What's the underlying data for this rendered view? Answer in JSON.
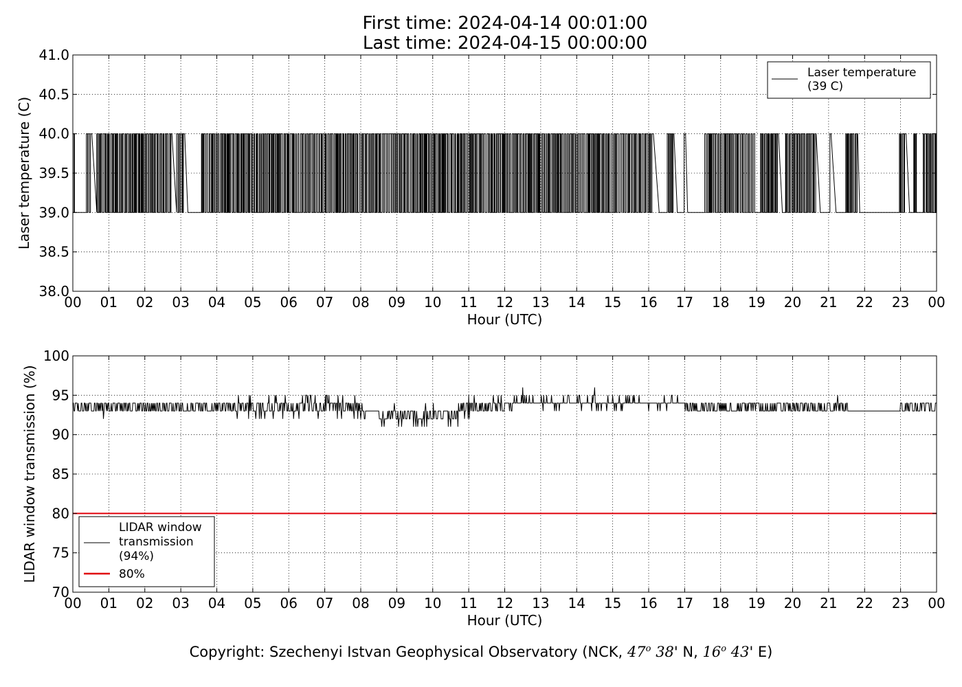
{
  "header": {
    "first_time": "First time: 2024-04-14 00:01:00",
    "last_time": "Last time: 2024-04-15 00:00:00"
  },
  "footer": {
    "prefix": "Copyright: Szechenyi Istvan Geophysical Observatory (NCK,",
    "lat_deg": "47",
    "deg_mark": "o",
    "lat_min": "38",
    "lat_suffix": "' N,",
    "lon_deg": "16",
    "lon_min": "43",
    "lon_suffix": "' E)"
  },
  "chart_data": [
    {
      "type": "line",
      "xlabel": "Hour (UTC)",
      "ylabel": "Laser temperature (C)",
      "xlim": [
        0,
        24
      ],
      "ylim": [
        38.0,
        41.0
      ],
      "xticks": [
        "00",
        "01",
        "02",
        "03",
        "04",
        "05",
        "06",
        "07",
        "08",
        "09",
        "10",
        "11",
        "12",
        "13",
        "14",
        "15",
        "16",
        "17",
        "18",
        "19",
        "20",
        "21",
        "22",
        "23",
        "00"
      ],
      "yticks": [
        "38.0",
        "38.5",
        "39.0",
        "39.5",
        "40.0",
        "40.5",
        "41.0"
      ],
      "grid": true,
      "legend_placement": "top-right",
      "colors": {
        "series": "#000000"
      },
      "legend": [
        {
          "label_lines": [
            "Laser temperature",
            "(39 C)"
          ],
          "color": "#000000"
        }
      ],
      "series": [
        {
          "name": "Laser temperature",
          "levels": [
            39.0,
            40.0
          ],
          "x_start": 0.0,
          "sample_minutes": 1,
          "quiet_periods_hours": [
            [
              0.07,
              0.3
            ],
            [
              0.5,
              0.6
            ],
            [
              2.75,
              2.82
            ],
            [
              3.1,
              3.55
            ],
            [
              16.1,
              16.4
            ],
            [
              16.7,
              16.95
            ],
            [
              17.0,
              17.45
            ],
            [
              18.95,
              19.1
            ],
            [
              19.6,
              19.8
            ],
            [
              20.65,
              21.0
            ],
            [
              21.05,
              21.4
            ],
            [
              21.8,
              22.85
            ],
            [
              23.15,
              23.35
            ],
            [
              23.45,
              23.6
            ]
          ],
          "values": [
            39.0,
            40.0,
            39.0,
            40.0,
            39.0,
            40.0,
            39.0,
            40.0,
            39.0,
            40.0
          ]
        }
      ]
    },
    {
      "type": "line",
      "xlabel": "Hour (UTC)",
      "ylabel": "LIDAR window transmission (%)",
      "xlim": [
        0,
        24
      ],
      "ylim": [
        70,
        100
      ],
      "xticks": [
        "00",
        "01",
        "02",
        "03",
        "04",
        "05",
        "06",
        "07",
        "08",
        "09",
        "10",
        "11",
        "12",
        "13",
        "14",
        "15",
        "16",
        "17",
        "18",
        "19",
        "20",
        "21",
        "22",
        "23",
        "00"
      ],
      "yticks": [
        "70",
        "75",
        "80",
        "85",
        "90",
        "95",
        "100"
      ],
      "grid": true,
      "legend_placement": "lower-left",
      "colors": {
        "series": "#000000",
        "threshold": "#e0000a"
      },
      "legend": [
        {
          "label_lines": [
            "LIDAR window",
            "transmission",
            "(94%)"
          ],
          "color": "#000000"
        },
        {
          "label_lines": [
            "80%"
          ],
          "color": "#e0000a"
        }
      ],
      "series": [
        {
          "name": "LIDAR window transmission",
          "baseline_by_hour": [
            [
              0,
              94
            ],
            [
              8,
              93.5
            ],
            [
              9,
              92.5
            ],
            [
              10.5,
              92.5
            ],
            [
              11,
              93.5
            ],
            [
              12,
              94
            ],
            [
              14,
              94
            ],
            [
              17,
              94
            ],
            [
              20,
              93.5
            ],
            [
              21,
              94
            ],
            [
              22,
              93
            ],
            [
              23,
              93.5
            ],
            [
              24,
              93.5
            ]
          ],
          "min": 91,
          "max": 96,
          "spikes": [
            [
              4.9,
              95
            ],
            [
              5.9,
              95
            ],
            [
              7.05,
              95
            ],
            [
              12.5,
              96
            ],
            [
              14.5,
              96
            ],
            [
              9.7,
              91
            ],
            [
              10.5,
              91
            ],
            [
              10.7,
              91
            ]
          ],
          "values": [
            94,
            93,
            94,
            95,
            94,
            92,
            91,
            94,
            96,
            94,
            93,
            94
          ]
        },
        {
          "name": "80%",
          "values": [
            80,
            80
          ]
        }
      ]
    }
  ]
}
